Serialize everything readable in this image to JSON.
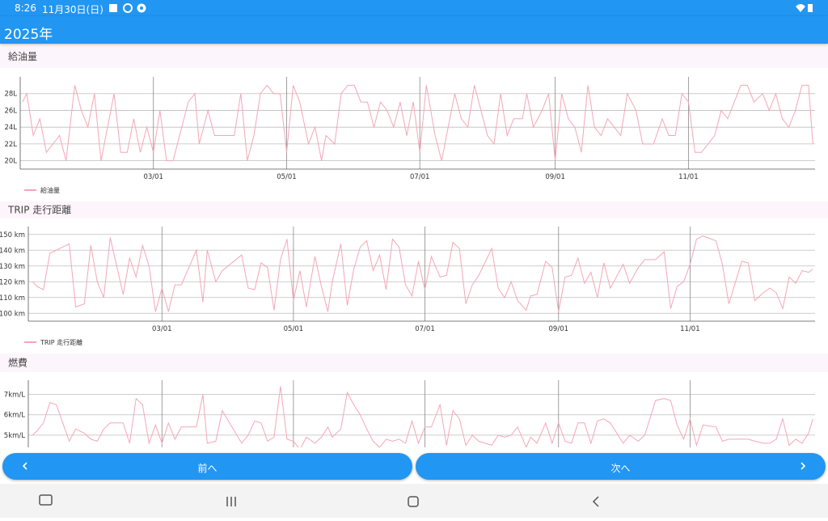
{
  "status": {
    "time": "8:26",
    "date": "11月30日(日)"
  },
  "app_bar": {
    "title": "2025年"
  },
  "chart_data": [
    {
      "type": "line",
      "title": "給油量",
      "x": [
        -1,
        1,
        4,
        7,
        10,
        16,
        19,
        23,
        26,
        29,
        32,
        35,
        41,
        44,
        47,
        50,
        53,
        56,
        59,
        62,
        65,
        68,
        75,
        78,
        80,
        84,
        87,
        96,
        99,
        102,
        105,
        108,
        111,
        114,
        117,
        120,
        123,
        126,
        130,
        133,
        136,
        138,
        142,
        145,
        148,
        151,
        154,
        157,
        160,
        163,
        166,
        169,
        172,
        175,
        178,
        181,
        184,
        188,
        191,
        194,
        197,
        200,
        203,
        206,
        212,
        215,
        218,
        221,
        224,
        228,
        230,
        233,
        237,
        240,
        243,
        246,
        249,
        252,
        255,
        258,
        261,
        264,
        267,
        273,
        276,
        280,
        283,
        288,
        292,
        295,
        298,
        301,
        304,
        307,
        310,
        316,
        319,
        322,
        328,
        331,
        334,
        338,
        341,
        344,
        347,
        350,
        353,
        356,
        359,
        361
      ],
      "series": [
        {
          "name": "給油量",
          "color": "#f4a6b8",
          "values": [
            27,
            28,
            23,
            25,
            21,
            23,
            20,
            29,
            26,
            24,
            28,
            20,
            28,
            21,
            21,
            25,
            21,
            24,
            21,
            26,
            20,
            20,
            27,
            28,
            22,
            26,
            23,
            23,
            28,
            20,
            23,
            28,
            29,
            28,
            28,
            21,
            29,
            27,
            22,
            24,
            20,
            23,
            22,
            28,
            29,
            29,
            27,
            27,
            24,
            27,
            26,
            24,
            27,
            23,
            27,
            21,
            29,
            23,
            20,
            24,
            28,
            25,
            24,
            29,
            23,
            22,
            28,
            23,
            25,
            25,
            28,
            24,
            26,
            28,
            20,
            28,
            25,
            24,
            21,
            29,
            24,
            23,
            25,
            23,
            28,
            26,
            22,
            22,
            25,
            23,
            23,
            28,
            27,
            21,
            21,
            23,
            26,
            25,
            29,
            29,
            27,
            28,
            26,
            28,
            25,
            24,
            26,
            29,
            29,
            22
          ]
        }
      ],
      "xlim": [
        -2,
        362
      ],
      "xticks": [
        {
          "value": 59,
          "label": "03/01"
        },
        {
          "value": 120,
          "label": "05/01"
        },
        {
          "value": 181,
          "label": "07/01"
        },
        {
          "value": 243,
          "label": "09/01"
        },
        {
          "value": 304,
          "label": "11/01"
        }
      ],
      "ylim": [
        19,
        30
      ],
      "yticks": [
        {
          "value": 20,
          "label": "20L"
        },
        {
          "value": 22,
          "label": "22L"
        },
        {
          "value": 24,
          "label": "24L"
        },
        {
          "value": 26,
          "label": "26L"
        },
        {
          "value": 28,
          "label": "28L"
        }
      ],
      "grid": true,
      "legend": "bottom-left"
    },
    {
      "type": "line",
      "title": "TRIP 走行距離",
      "x": [
        -1,
        1,
        4,
        7,
        10,
        16,
        19,
        23,
        26,
        29,
        32,
        35,
        41,
        44,
        47,
        50,
        53,
        56,
        59,
        62,
        65,
        68,
        75,
        78,
        80,
        84,
        87,
        96,
        99,
        102,
        105,
        108,
        111,
        114,
        117,
        120,
        123,
        126,
        130,
        133,
        136,
        138,
        142,
        145,
        148,
        151,
        154,
        157,
        160,
        163,
        166,
        169,
        172,
        175,
        178,
        181,
        184,
        188,
        191,
        194,
        197,
        200,
        203,
        206,
        212,
        215,
        218,
        221,
        224,
        228,
        230,
        233,
        237,
        240,
        243,
        246,
        249,
        252,
        255,
        258,
        261,
        264,
        267,
        273,
        276,
        280,
        283,
        288,
        292,
        295,
        298,
        301,
        304,
        307,
        310,
        316,
        319,
        322,
        328,
        331,
        334,
        338,
        341,
        344,
        347,
        350,
        353,
        356,
        359,
        361
      ],
      "series": [
        {
          "name": "TRIP 走行距離",
          "color": "#f4a6b8",
          "values": [
            120,
            117,
            115,
            138,
            140,
            144,
            104,
            106,
            143,
            120,
            110,
            148,
            112,
            135,
            123,
            143,
            130,
            101,
            116,
            101,
            118,
            118,
            140,
            107,
            140,
            120,
            127,
            137,
            116,
            115,
            132,
            129,
            102,
            134,
            147,
            108,
            127,
            104,
            136,
            117,
            101,
            120,
            144,
            105,
            128,
            142,
            146,
            127,
            137,
            115,
            147,
            142,
            118,
            111,
            133,
            115,
            136,
            123,
            124,
            145,
            141,
            106,
            118,
            124,
            141,
            116,
            110,
            120,
            108,
            102,
            111,
            112,
            133,
            129,
            101,
            123,
            124,
            135,
            119,
            126,
            110,
            132,
            116,
            131,
            119,
            129,
            134,
            134,
            139,
            103,
            117,
            120,
            131,
            147,
            149,
            146,
            131,
            106,
            133,
            132,
            108,
            113,
            116,
            113,
            103,
            123,
            119,
            127,
            126,
            128
          ]
        }
      ],
      "xlim": [
        -3,
        362
      ],
      "xticks": [
        {
          "value": 59,
          "label": "03/01"
        },
        {
          "value": 120,
          "label": "05/01"
        },
        {
          "value": 181,
          "label": "07/01"
        },
        {
          "value": 243,
          "label": "09/01"
        },
        {
          "value": 304,
          "label": "11/01"
        }
      ],
      "ylim": [
        95,
        155
      ],
      "yticks": [
        {
          "value": 100,
          "label": "100 km"
        },
        {
          "value": 110,
          "label": "110 km"
        },
        {
          "value": 120,
          "label": "120 km"
        },
        {
          "value": 130,
          "label": "130 km"
        },
        {
          "value": 140,
          "label": "140 km"
        },
        {
          "value": 150,
          "label": "150 km"
        }
      ],
      "grid": true,
      "legend": "bottom-left"
    },
    {
      "type": "line",
      "title": "燃費",
      "x": [
        -1,
        1,
        4,
        7,
        10,
        16,
        19,
        23,
        26,
        29,
        32,
        35,
        41,
        44,
        47,
        50,
        53,
        56,
        59,
        62,
        65,
        68,
        75,
        78,
        80,
        84,
        87,
        96,
        99,
        102,
        105,
        108,
        111,
        114,
        117,
        120,
        123,
        126,
        130,
        133,
        136,
        138,
        142,
        145,
        148,
        151,
        154,
        157,
        160,
        163,
        166,
        169,
        172,
        175,
        178,
        181,
        184,
        188,
        191,
        194,
        197,
        200,
        203,
        206,
        212,
        215,
        218,
        221,
        224,
        228,
        230,
        233,
        237,
        240,
        243,
        246,
        249,
        252,
        255,
        258,
        261,
        264,
        267,
        273,
        276,
        280,
        283,
        288,
        292,
        295,
        298,
        301,
        304,
        307,
        310,
        316,
        319,
        322,
        328,
        331,
        334,
        338,
        341,
        344,
        347,
        350,
        353,
        356,
        359,
        361
      ],
      "series": [
        {
          "color": "#f4a6b8",
          "values": [
            5.0,
            5.2,
            5.6,
            6.6,
            6.5,
            4.7,
            5.3,
            5.1,
            4.8,
            4.7,
            5.3,
            5.6,
            5.6,
            4.6,
            6.8,
            6.5,
            4.6,
            5.5,
            4.6,
            5.6,
            4.8,
            5.4,
            5.4,
            7.0,
            4.6,
            4.7,
            6.2,
            4.6,
            5.0,
            5.7,
            5.6,
            4.7,
            4.9,
            7.4,
            4.8,
            4.7,
            4.3,
            4.9,
            4.6,
            4.9,
            5.4,
            4.9,
            5.3,
            7.1,
            6.5,
            6.0,
            5.3,
            4.7,
            4.4,
            4.8,
            4.7,
            4.8,
            4.6,
            5.7,
            4.6,
            5.4,
            5.4,
            6.5,
            4.5,
            6.2,
            5.8,
            4.5,
            5.0,
            4.7,
            4.5,
            5.0,
            4.9,
            5.0,
            5.4,
            4.4,
            4.9,
            4.6,
            5.6,
            4.6,
            5.6,
            4.7,
            4.6,
            5.6,
            5.6,
            4.6,
            5.7,
            5.8,
            5.6,
            4.6,
            5.0,
            4.7,
            5.0,
            6.7,
            6.8,
            6.7,
            5.5,
            4.8,
            5.8,
            4.5,
            5.5,
            5.4,
            4.7,
            4.8,
            4.8,
            4.8,
            4.7,
            4.6,
            4.6,
            4.8,
            5.8,
            4.5,
            4.8,
            4.6,
            5.1,
            5.8
          ]
        }
      ],
      "xlim": [
        -3,
        362
      ],
      "xticks": [
        59,
        120,
        181,
        243,
        304
      ],
      "ylim": [
        4,
        7.7
      ],
      "yticks": [
        {
          "value": 5,
          "label": "5km/L"
        },
        {
          "value": 6,
          "label": "6km/L"
        },
        {
          "value": 7,
          "label": "7km/L"
        }
      ],
      "grid": true
    }
  ],
  "buttons": {
    "prev": "前へ",
    "next": "次へ"
  }
}
